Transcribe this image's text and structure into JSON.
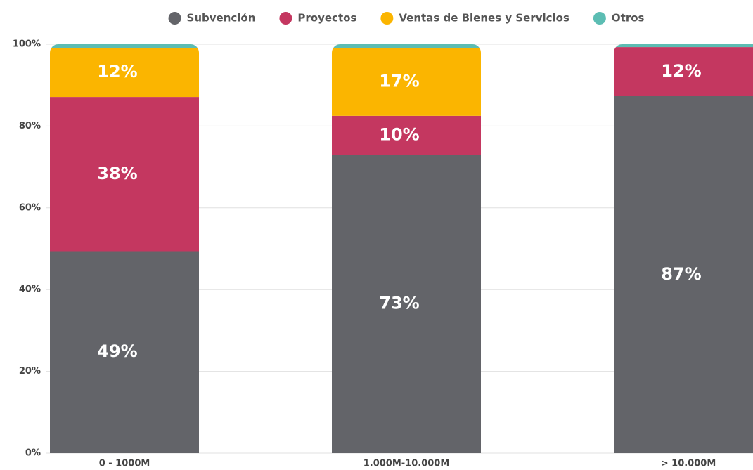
{
  "chart_data": {
    "type": "stacked_bar",
    "categories": [
      "0 - 1000M",
      "1.000M-10.000M",
      "> 10.000M"
    ],
    "series": [
      {
        "name": "Subvención",
        "color": "#636469",
        "values": [
          49.4,
          73,
          87.3
        ],
        "value_labels": [
          "49%",
          "73%",
          "87%"
        ]
      },
      {
        "name": "Proyectos",
        "color": "#c43760",
        "values": [
          37.7,
          9.5,
          12
        ],
        "value_labels": [
          "38%",
          "10%",
          "12%"
        ]
      },
      {
        "name": "Ventas de Bienes y Servicios",
        "color": "#fbb500",
        "values": [
          12,
          16.6,
          0
        ],
        "value_labels": [
          "12%",
          "17%",
          null
        ]
      },
      {
        "name": "Otros",
        "color": "#5cbdb3",
        "values": [
          0.9,
          0.9,
          0.7
        ],
        "value_labels": [
          null,
          null,
          null
        ]
      }
    ],
    "ylim": [
      0,
      100
    ],
    "yticks": [
      {
        "value": 0,
        "label": "0%"
      },
      {
        "value": 20,
        "label": "20%"
      },
      {
        "value": 40,
        "label": "40%"
      },
      {
        "value": 60,
        "label": "60%"
      },
      {
        "value": 80,
        "label": "80%"
      },
      {
        "value": 100,
        "label": "100%"
      }
    ],
    "grid": true,
    "legend": "top"
  }
}
